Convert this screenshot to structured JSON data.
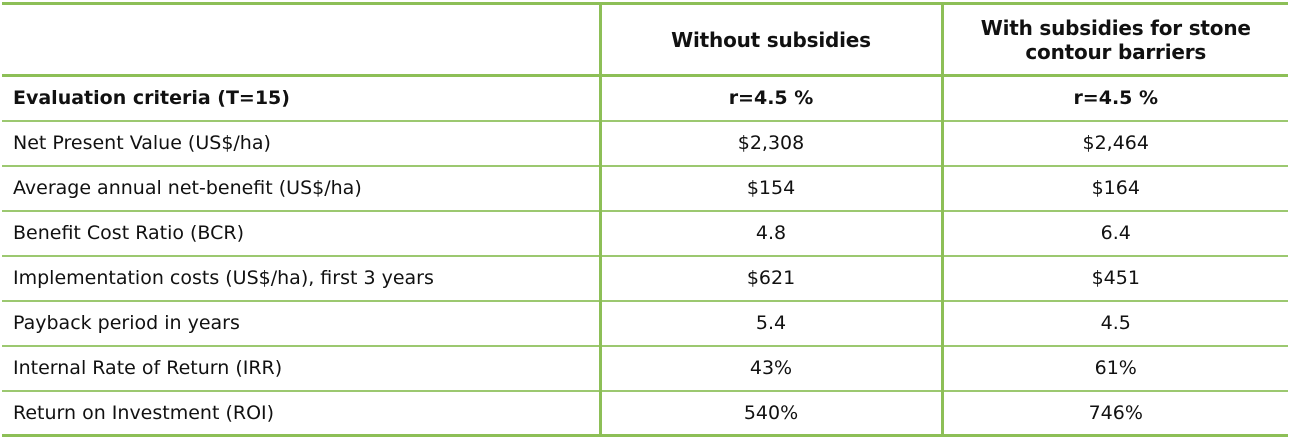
{
  "table": {
    "headers": {
      "blank": "",
      "without_subsidies": "Without subsidies",
      "with_subsidies_line1": "With subsidies for stone",
      "with_subsidies_line2": "contour barriers"
    },
    "criteria_row": {
      "label": "Evaluation criteria (T=15)",
      "without_subsidies": "r=4.5 %",
      "with_subsidies": "r=4.5 %"
    },
    "rows": [
      {
        "label": "Net Present Value (US$/ha)",
        "without_subsidies": "$2,308",
        "with_subsidies": "$2,464"
      },
      {
        "label": "Average annual net-benefit (US$/ha)",
        "without_subsidies": "$154",
        "with_subsidies": "$164"
      },
      {
        "label": "Benefit Cost Ratio (BCR)",
        "without_subsidies": "4.8",
        "with_subsidies": "6.4"
      },
      {
        "label": "Implementation costs (US$/ha), first 3 years",
        "without_subsidies": "$621",
        "with_subsidies": "$451"
      },
      {
        "label": "Payback period in years",
        "without_subsidies": "5.4",
        "with_subsidies": "4.5"
      },
      {
        "label": "Internal Rate of Return (IRR)",
        "without_subsidies": "43%",
        "with_subsidies": "61%"
      },
      {
        "label": "Return on Investment (ROI)",
        "without_subsidies": "540%",
        "with_subsidies": "746%"
      }
    ]
  },
  "colors": {
    "border_strong": "#8dbf57",
    "border_light": "#9cc870",
    "text": "#111111",
    "background": "#ffffff"
  }
}
